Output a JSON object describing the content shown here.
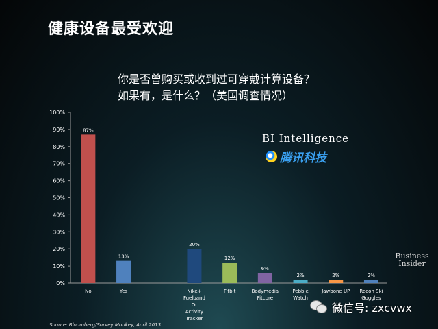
{
  "header": {
    "title": "健康设备最受欢迎"
  },
  "question": {
    "line1": "你是否曾购买或收到过可穿戴计算设备？",
    "line2": "如果有，是什么？（美国调查情况）"
  },
  "watermarks": {
    "bi_intelligence": "BI Intelligence",
    "tencent": "腾讯科技",
    "business_line1": "Business",
    "business_line2": "Insider",
    "wechat": "微信号: zxcvwx"
  },
  "source": "Source: Bloomberg/Survey Monkey, April 2013",
  "chart_data": {
    "type": "bar",
    "title": "",
    "xlabel": "",
    "ylabel": "",
    "ylim": [
      0,
      100
    ],
    "yticks": [
      0,
      10,
      20,
      30,
      40,
      50,
      60,
      70,
      80,
      90,
      100
    ],
    "ytick_labels": [
      "0%",
      "10%",
      "20%",
      "30%",
      "40%",
      "50%",
      "60%",
      "70%",
      "80%",
      "90%",
      "100%"
    ],
    "grid": false,
    "legend": "none",
    "groups": [
      [
        {
          "category": "No",
          "value": 87,
          "label": "87%",
          "color": "#c0504d"
        },
        {
          "category": "Yes",
          "value": 13,
          "label": "13%",
          "color": "#4f81bd"
        }
      ],
      [
        {
          "category": "Nike+ Fuelband Or Activity Tracker",
          "value": 20,
          "label": "20%",
          "color": "#1f497d"
        },
        {
          "category": "Fitbit",
          "value": 12,
          "label": "12%",
          "color": "#9bbb59"
        },
        {
          "category": "Bodymedia Fitcore",
          "value": 6,
          "label": "6%",
          "color": "#8064a2"
        },
        {
          "category": "Pebble Watch",
          "value": 2,
          "label": "2%",
          "color": "#4bacc6"
        },
        {
          "category": "Jawbone UP",
          "value": 2,
          "label": "2%",
          "color": "#f79646"
        },
        {
          "category": "Recon Ski Goggles",
          "value": 2,
          "label": "2%",
          "color": "#4f81bd"
        }
      ]
    ]
  }
}
